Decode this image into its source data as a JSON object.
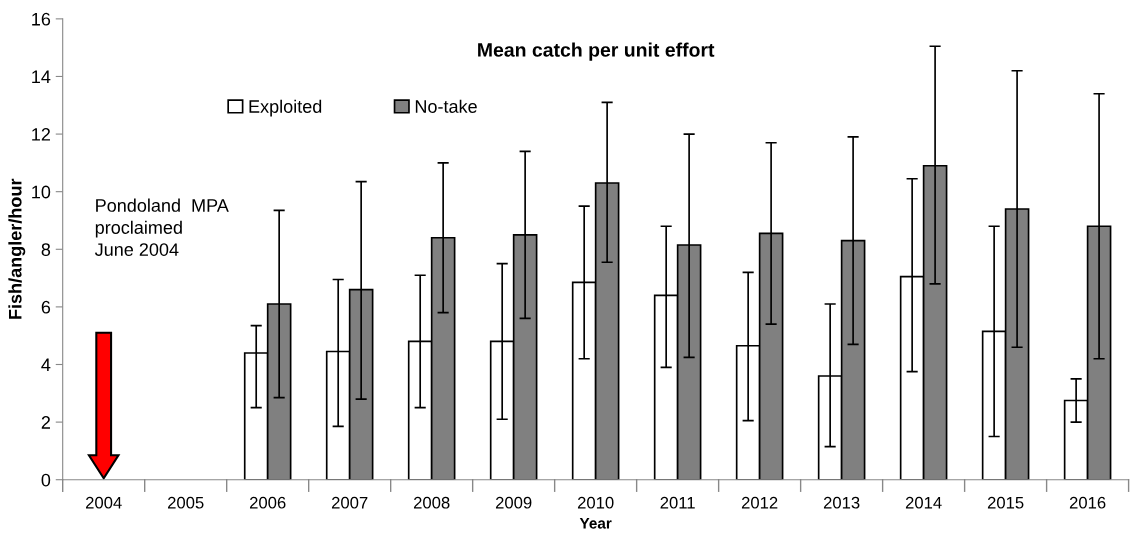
{
  "chart_data": {
    "type": "bar",
    "title": "Mean catch per unit effort",
    "xlabel": "Year",
    "ylabel": "Fish/angler/hour",
    "categories": [
      "2004",
      "2005",
      "2006",
      "2007",
      "2008",
      "2009",
      "2010",
      "2011",
      "2012",
      "2013",
      "2014",
      "2015",
      "2016"
    ],
    "series": [
      {
        "name": "Exploited",
        "color": "#ffffff",
        "values": [
          null,
          null,
          4.4,
          4.45,
          4.8,
          4.8,
          6.85,
          6.4,
          4.65,
          3.6,
          7.05,
          5.15,
          2.75
        ],
        "errors": [
          null,
          null,
          [
            2.5,
            5.35
          ],
          [
            1.85,
            6.95
          ],
          [
            2.5,
            7.1
          ],
          [
            2.1,
            7.5
          ],
          [
            4.2,
            9.5
          ],
          [
            3.9,
            8.8
          ],
          [
            2.05,
            7.2
          ],
          [
            1.15,
            6.1
          ],
          [
            3.75,
            10.45
          ],
          [
            1.5,
            8.8
          ],
          [
            2.0,
            3.5
          ]
        ]
      },
      {
        "name": "No-take",
        "color": "#808080",
        "values": [
          null,
          null,
          6.1,
          6.6,
          8.4,
          8.5,
          10.3,
          8.15,
          8.55,
          8.3,
          10.9,
          9.4,
          8.8
        ],
        "errors": [
          null,
          null,
          [
            2.85,
            9.35
          ],
          [
            2.8,
            10.35
          ],
          [
            5.8,
            11.0
          ],
          [
            5.6,
            11.4
          ],
          [
            7.55,
            13.1
          ],
          [
            4.25,
            12.0
          ],
          [
            5.4,
            11.7
          ],
          [
            4.7,
            11.9
          ],
          [
            6.8,
            15.05
          ],
          [
            4.6,
            14.2
          ],
          [
            4.2,
            13.4
          ]
        ]
      }
    ],
    "ylim": [
      0,
      16
    ],
    "yticks": [
      0,
      2,
      4,
      6,
      8,
      10,
      12,
      14,
      16
    ],
    "grid": false,
    "legend": "top left",
    "annotations": [
      "Pondoland  MPA\nproclaimed\nJune 2004"
    ]
  }
}
